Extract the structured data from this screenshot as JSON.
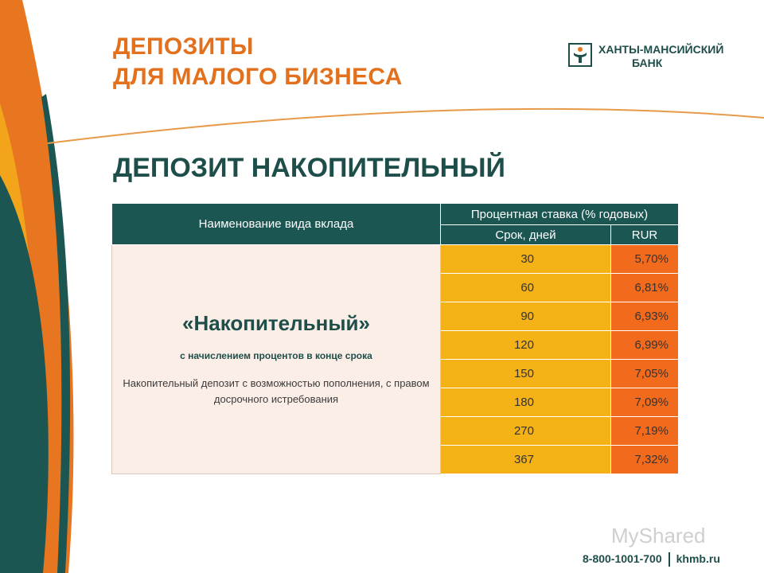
{
  "header": {
    "title_line1": "ДЕПОЗИТЫ",
    "title_line2": "ДЛЯ МАЛОГО БИЗНЕСА"
  },
  "logo": {
    "line1": "ХАНТЫ-МАНСИЙСКИЙ",
    "line2": "БАНК",
    "icon": "bank-logo-icon"
  },
  "subtitle": "ДЕПОЗИТ НАКОПИТЕЛЬНЫЙ",
  "table": {
    "col_name": "Наименование вида вклада",
    "col_rate": "Процентная ставка (% годовых)",
    "col_term": "Срок, дней",
    "col_currency": "RUR",
    "product": {
      "name": "«Накопительный»",
      "note": "с начислением процентов в конце срока",
      "description": "Накопительный депозит с возможностью пополнения, с правом досрочного истребования"
    },
    "rows": [
      {
        "term": "30",
        "rate": "5,70%"
      },
      {
        "term": "60",
        "rate": "6,81%"
      },
      {
        "term": "90",
        "rate": "6,93%"
      },
      {
        "term": "120",
        "rate": "6,99%"
      },
      {
        "term": "150",
        "rate": "7,05%"
      },
      {
        "term": "180",
        "rate": "7,09%"
      },
      {
        "term": "270",
        "rate": "7,19%"
      },
      {
        "term": "367",
        "rate": "7,32%"
      }
    ]
  },
  "footer": {
    "watermark": "MyShared",
    "phone": "8-800-1001-700",
    "site": "khmb.ru"
  },
  "colors": {
    "accent_orange": "#e2701c",
    "teal": "#1b5652",
    "term_yellow": "#f5b217",
    "rate_orange": "#f26b1d"
  }
}
